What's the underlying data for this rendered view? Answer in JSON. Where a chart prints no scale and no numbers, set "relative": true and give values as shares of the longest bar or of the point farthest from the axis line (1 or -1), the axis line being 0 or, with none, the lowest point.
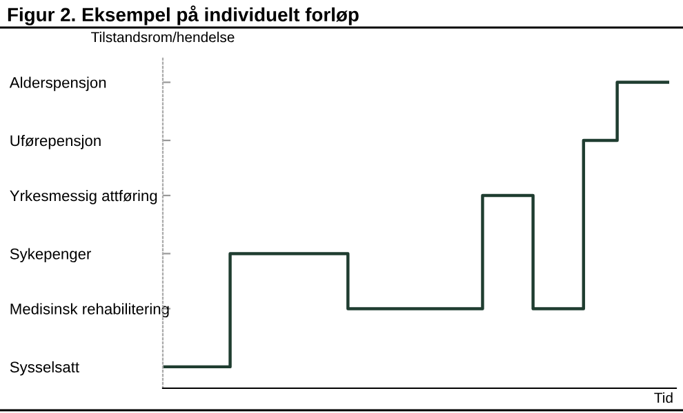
{
  "chart_data": {
    "type": "step",
    "title": "Figur 2. Eksempel på individuelt forløp",
    "ylabel": "Tilstandsrom/hendelse",
    "annotations": [
      "Tid"
    ],
    "relative": true,
    "categories": [
      null,
      null,
      null,
      null,
      null,
      null,
      null,
      null,
      null,
      null,
      null,
      null,
      null,
      null,
      null,
      null,
      null,
      null,
      null,
      null,
      null,
      null,
      null,
      null,
      null,
      null,
      null,
      null,
      null,
      null,
      null
    ],
    "y_categories": [
      "Alderspensjon",
      "Uførepensjon",
      "Yrkesmessig attføring",
      "Sykepenger",
      "Medisinsk rehabilitering",
      "Sysselsatt"
    ],
    "series": [
      {
        "color": "#1f3d30",
        "values": [
          0.07,
          0.07,
          0.07,
          0.07,
          0.44,
          0.44,
          0.44,
          0.44,
          0.44,
          0.44,
          0.44,
          0.26,
          0.26,
          0.26,
          0.26,
          0.26,
          0.26,
          0.26,
          0.26,
          0.63,
          0.63,
          0.63,
          0.26,
          0.26,
          0.26,
          0.81,
          0.81,
          1,
          1,
          1,
          1
        ]
      }
    ],
    "tick_labels": "y",
    "grid": false,
    "legend": false,
    "line_style": "solid",
    "marker": "none"
  }
}
